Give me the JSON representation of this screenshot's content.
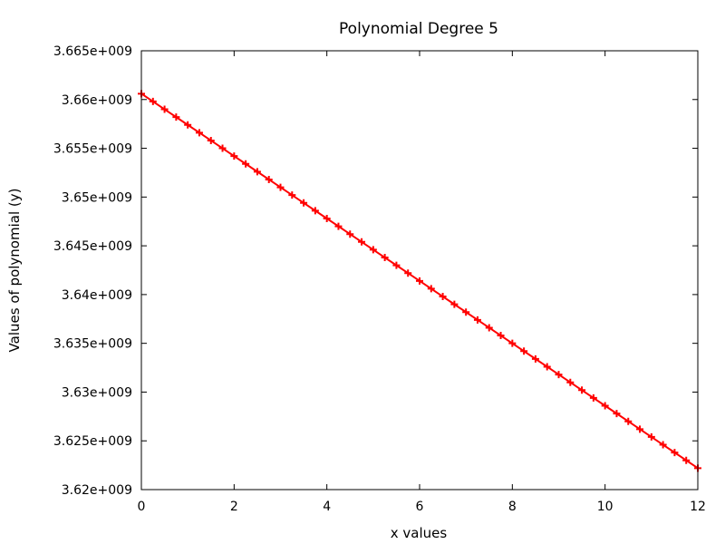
{
  "chart_data": {
    "type": "line",
    "title": "Polynomial Degree 5",
    "xlabel": "x values",
    "ylabel": "Values of polynomial (y)",
    "xlim": [
      0,
      12
    ],
    "ylim": [
      3620000000,
      3665000000
    ],
    "x_ticks": [
      0,
      2,
      4,
      6,
      8,
      10,
      12
    ],
    "x_tick_labels": [
      "0",
      "2",
      "4",
      "6",
      "8",
      "10",
      "12"
    ],
    "y_ticks": [
      3620000000,
      3625000000,
      3630000000,
      3635000000,
      3640000000,
      3645000000,
      3650000000,
      3655000000,
      3660000000,
      3665000000
    ],
    "y_tick_labels": [
      "3.62e+009",
      "3.625e+009",
      "3.63e+009",
      "3.635e+009",
      "3.64e+009",
      "3.645e+009",
      "3.65e+009",
      "3.655e+009",
      "3.66e+009",
      "3.665e+009"
    ],
    "grid": false,
    "legend": "none",
    "marker": "plus",
    "series": [
      {
        "color": "#ff0000",
        "x": [
          0,
          0.25,
          0.5,
          0.75,
          1,
          1.25,
          1.5,
          1.75,
          2,
          2.25,
          2.5,
          2.75,
          3,
          3.25,
          3.5,
          3.75,
          4,
          4.25,
          4.5,
          4.75,
          5,
          5.25,
          5.5,
          5.75,
          6,
          6.25,
          6.5,
          6.75,
          7,
          7.25,
          7.5,
          7.75,
          8,
          8.25,
          8.5,
          8.75,
          9,
          9.25,
          9.5,
          9.75,
          10,
          10.25,
          10.5,
          10.75,
          11,
          11.25,
          11.5,
          11.75,
          12
        ],
        "y": [
          3660600000,
          3659800000,
          3659000000,
          3658200000,
          3657400000,
          3656600000,
          3655800000,
          3655000000,
          3654200000,
          3653400000,
          3652600000,
          3651800000,
          3651000000,
          3650200000,
          3649400000,
          3648600000,
          3647800000,
          3647000000,
          3646200000,
          3645400000,
          3644600000,
          3643800000,
          3643000000,
          3642200000,
          3641400000,
          3640600000,
          3639800000,
          3639000000,
          3638200000,
          3637400000,
          3636600000,
          3635800000,
          3635000000,
          3634200000,
          3633400000,
          3632600000,
          3631800000,
          3631000000,
          3630200000,
          3629400000,
          3628600000,
          3627800000,
          3627000000,
          3626200000,
          3625400000,
          3624600000,
          3623800000,
          3623000000,
          3622200000
        ]
      }
    ]
  }
}
